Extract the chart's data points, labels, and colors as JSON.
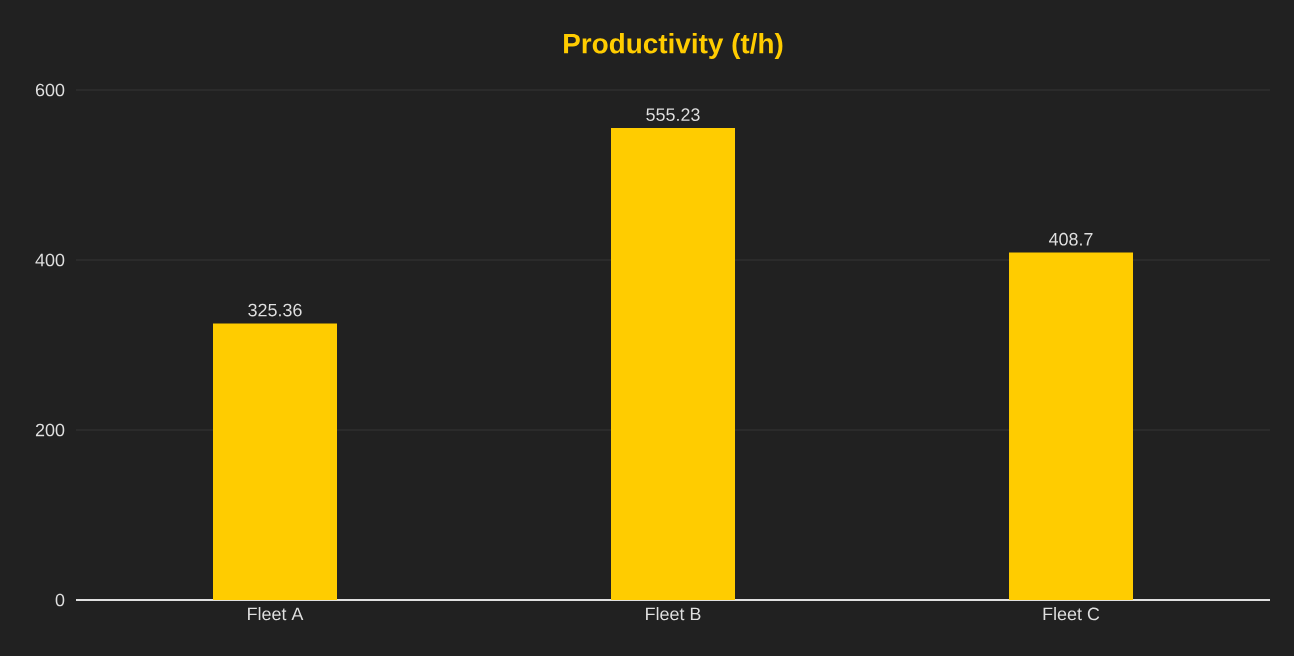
{
  "chart_data": {
    "type": "bar",
    "title": "Productivity (t/h)",
    "categories": [
      "Fleet A",
      "Fleet B",
      "Fleet C"
    ],
    "values": [
      325.36,
      555.23,
      408.7
    ],
    "color": "#ffcc00",
    "ylim": [
      0,
      600
    ],
    "yticks": [
      0,
      200,
      400,
      600
    ],
    "grid": "y",
    "data_labels": true
  }
}
